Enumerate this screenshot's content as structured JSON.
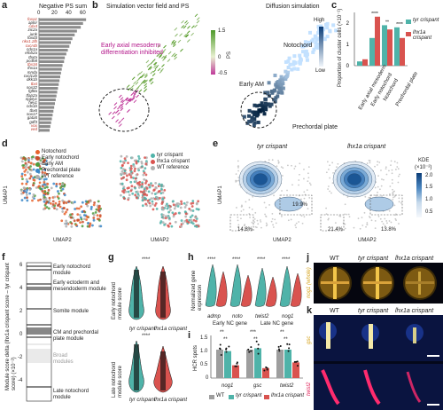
{
  "panels": [
    "a",
    "b",
    "c",
    "d",
    "e",
    "f",
    "g",
    "h",
    "i",
    "j",
    "k"
  ],
  "a": {
    "xlabel": "Negative PS sum",
    "ticks": [
      "0",
      "20",
      "40",
      "60"
    ],
    "genes": [
      "foxa1",
      "aplnr",
      "cdx4",
      "zic2a",
      "junk",
      "foxd3",
      "nkx1.2lb",
      "cxcr4b",
      "cdx1a",
      "efnb2a",
      "tbxta",
      "pcdh8",
      "tbx16",
      "lhx1a",
      "mnda",
      "cxcl12b",
      "dkk1b",
      "tbxt",
      "sox32",
      "fgf8a",
      "tfap2a",
      "ripply1",
      "hey1",
      "cdx1b",
      "tbx6",
      "sox17",
      "gata5",
      "gdf3",
      "vox",
      "ved"
    ],
    "red_genes": [
      "foxa1",
      "cdx4",
      "nkx1.2lb",
      "cxcr4b",
      "tbx16",
      "tbxt",
      "vox",
      "ved"
    ],
    "values": [
      62,
      58,
      55,
      50,
      47,
      44,
      42,
      40,
      38,
      36,
      34,
      33,
      31,
      30,
      29,
      28,
      27,
      26,
      25,
      24,
      23,
      22,
      21,
      20,
      19,
      18,
      17,
      16,
      15,
      14
    ]
  },
  "b": {
    "title_left": "Simulation vector field and PS",
    "title_right": "Diffusion simulation",
    "annotation": "Early axial mesoderm differentiation inhibited",
    "ps_label": "PS",
    "ps_ticks": [
      "1.5",
      "0",
      "-0.5"
    ],
    "high": "High",
    "low": "Low",
    "region_notochord": "Notochord",
    "region_early_am": "Early AM",
    "region_prechordal": "Prechordal plate"
  },
  "c": {
    "ylabel": "Proportion of cluster cells (×10⁻¹)",
    "yticks": [
      "0",
      "1",
      "2"
    ],
    "legend": [
      "tyr crispant",
      "lhx1a crispant"
    ],
    "categories": [
      "Early axial mesoderm",
      "Early notochord",
      "Notochord",
      "Prechordal plate"
    ],
    "sig": [
      "",
      "****",
      "**",
      "****"
    ],
    "colors": {
      "tyr": "#4fb3a9",
      "lhx1a": "#d9534f"
    }
  },
  "chart_data": [
    {
      "type": "bar",
      "panel": "a",
      "xlabel": "Negative PS sum",
      "categories": [
        "foxa1",
        "aplnr",
        "cdx4",
        "zic2a",
        "junk",
        "foxd3",
        "nkx1.2lb",
        "cxcr4b",
        "cdx1a",
        "efnb2a",
        "tbxta",
        "pcdh8",
        "tbx16",
        "lhx1a",
        "mnda",
        "cxcl12b",
        "dkk1b",
        "tbxt",
        "sox32",
        "fgf8a",
        "tfap2a",
        "ripply1",
        "hey1",
        "cdx1b",
        "tbx6",
        "sox17",
        "gata5",
        "gdf3",
        "vox",
        "ved"
      ],
      "values": [
        62,
        58,
        55,
        50,
        47,
        44,
        42,
        40,
        38,
        36,
        34,
        33,
        31,
        30,
        29,
        28,
        27,
        26,
        25,
        24,
        23,
        22,
        21,
        20,
        19,
        18,
        17,
        16,
        15,
        14
      ],
      "xlim": [
        0,
        70
      ]
    },
    {
      "type": "bar",
      "panel": "c",
      "categories": [
        "Early axial mesoderm",
        "Early notochord",
        "Notochord",
        "Prechordal plate"
      ],
      "series": [
        {
          "name": "tyr crispant",
          "values": [
            0.2,
            1.3,
            1.9,
            1.8
          ]
        },
        {
          "name": "lhx1a crispant",
          "values": [
            0.3,
            2.3,
            1.7,
            1.3
          ]
        }
      ],
      "ylim": [
        0,
        2.5
      ]
    },
    {
      "type": "bar",
      "panel": "i",
      "ylabel": "HCR spots",
      "categories": [
        "nog1",
        "gsc",
        "twist2"
      ],
      "series": [
        {
          "name": "WT",
          "values": [
            1.0,
            1.0,
            1.0
          ]
        },
        {
          "name": "tyr crispant",
          "values": [
            0.95,
            1.05,
            1.0
          ]
        },
        {
          "name": "lhx1a crispant",
          "values": [
            0.45,
            0.35,
            0.55
          ]
        }
      ],
      "ylim": [
        0,
        1.5
      ]
    }
  ],
  "d": {
    "legend_left": [
      "Notochord",
      "Early notochord",
      "Early AM",
      "Prechordal plate",
      "WT reference"
    ],
    "legend_right": [
      "tyr crispant",
      "lhx1a crispant",
      "WT reference"
    ],
    "xlabel": "UMAP2",
    "ylabel": "UMAP1"
  },
  "e": {
    "title_left": "tyr crispant",
    "title_right": "lhx1a crispant",
    "pct_left": [
      "19.9%",
      "14.8%"
    ],
    "pct_right": [
      "13.8%",
      "21.4%"
    ],
    "kde_label": "KDE",
    "kde_unit": "(×10⁻²)",
    "kde_ticks": [
      "2.0",
      "1.5",
      "1.0",
      "0.5"
    ],
    "xlabel": "UMAP2",
    "ylabel": "UMAP1"
  },
  "f": {
    "ylabel": "Module score delta (lhx1a crispant score – tyr crispant score) (×10⁻²)",
    "yticks": [
      "6",
      "4",
      "2",
      "0",
      "-2",
      "-4"
    ],
    "modules": [
      "Early notochord module",
      "Early ectoderm and mesendoderm module",
      "Somite module",
      "CM and prechordal plate module",
      "Broad modules",
      "Late notochord module"
    ]
  },
  "g": {
    "ylabel_top": "Early notochord module score",
    "ylabel_bottom": "Late notochord module score",
    "sig": "****",
    "categories": [
      "tyr crispant",
      "lhx1a crispant"
    ]
  },
  "h": {
    "ylabel": "Normalized gene expression",
    "genes": [
      "admp",
      "noto",
      "twist2",
      "nog1"
    ],
    "group_left": "Early NC gene",
    "group_right": "Late NC gene",
    "sig": [
      "****",
      "****",
      "****",
      "****"
    ]
  },
  "i": {
    "ylabel": "HCR spots",
    "yticks": [
      "0",
      "0.5",
      "1.0",
      "1.5"
    ],
    "genes": [
      "nog1",
      "gsc",
      "twist2"
    ],
    "sig": [
      "**",
      "**",
      "***",
      "**",
      "**",
      "**"
    ],
    "legend": [
      "WT",
      "tyr crispant",
      "lhx1a crispant"
    ],
    "colors": {
      "wt": "#9e9e9e",
      "tyr": "#4fb3a9",
      "lhx1a": "#d9534f"
    }
  },
  "j": {
    "labels": [
      "WT",
      "tyr crispant",
      "lhx1a crispant"
    ],
    "side_label": "nog1 (whole)"
  },
  "k": {
    "labels": [
      "WT",
      "tyr crispant",
      "lhx1a crispant"
    ],
    "row_labels": [
      "gsc",
      "twist2"
    ]
  }
}
